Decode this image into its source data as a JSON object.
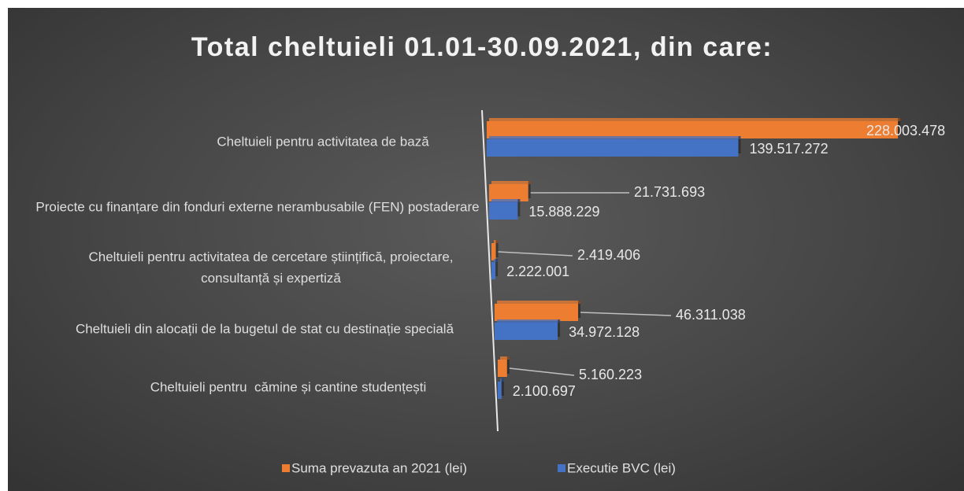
{
  "chart_data": {
    "type": "bar",
    "orientation": "horizontal",
    "title": "Total cheltuieli 01.01-30.09.2021, din care:",
    "categories": [
      "Cheltuieli pentru activitatea de bază",
      "Proiecte cu finanțare din fonduri externe nerambusabile (FEN) postaderare",
      "Cheltuieli pentru activitatea de cercetare științifică, proiectare, consultanță și expertiză",
      "Cheltuieli din alocații de la bugetul de stat cu destinație specială",
      "Cheltuieli pentru  cămine și cantine studențești"
    ],
    "series": [
      {
        "name": "Suma prevazuta an 2021 (lei)",
        "color": "#ed7d31",
        "values": [
          228003478,
          21731693,
          2419406,
          46311038,
          5160223
        ],
        "value_labels": [
          "228.003.478",
          "21.731.693",
          "2.419.406",
          "46.311.038",
          "5.160.223"
        ]
      },
      {
        "name": "Executie BVC (lei)",
        "color": "#4472c4",
        "values": [
          139517272,
          15888229,
          2222001,
          34972128,
          2100697
        ],
        "value_labels": [
          "139.517.272",
          "15.888.229",
          "2.222.001",
          "34.972.128",
          "2.100.697"
        ]
      }
    ],
    "legend": "bottom"
  }
}
